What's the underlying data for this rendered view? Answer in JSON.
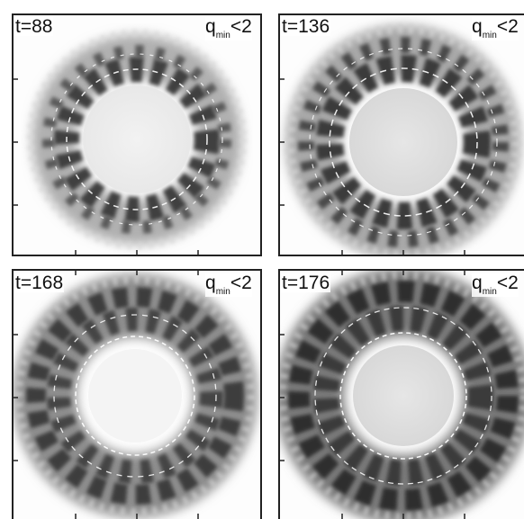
{
  "panels": [
    {
      "time_label": "t=88",
      "q_label_main": "q",
      "q_label_sub": "min",
      "q_label_tail": "<2"
    },
    {
      "time_label": "t=136",
      "q_label_main": "q",
      "q_label_sub": "min",
      "q_label_tail": "<2"
    },
    {
      "time_label": "t=168",
      "q_label_main": "q",
      "q_label_sub": "min",
      "q_label_tail": "<2"
    },
    {
      "time_label": "t=176",
      "q_label_main": "q",
      "q_label_sub": "min",
      "q_label_tail": "<2"
    }
  ]
}
